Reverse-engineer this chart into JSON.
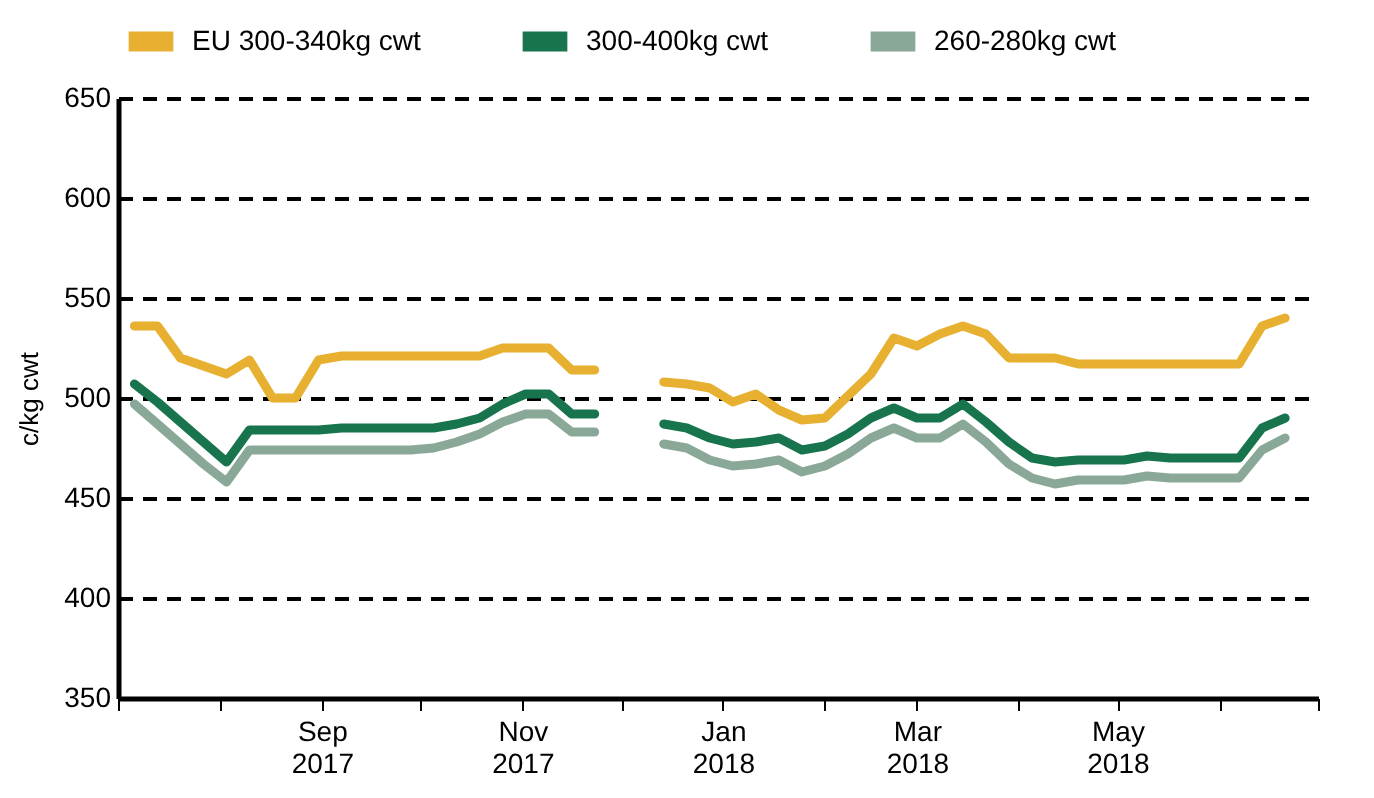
{
  "chart_data": {
    "type": "line",
    "ylabel": "c/kg cwt",
    "legend": "top",
    "grid": "y",
    "line_style": "solid",
    "marker": "none",
    "x": [
      "2017-07-06",
      "2017-07-13",
      "2017-07-20",
      "2017-07-27",
      "2017-08-03",
      "2017-08-10",
      "2017-08-17",
      "2017-08-24",
      "2017-08-31",
      "2017-09-07",
      "2017-09-14",
      "2017-09-21",
      "2017-09-28",
      "2017-10-05",
      "2017-10-12",
      "2017-10-19",
      "2017-10-26",
      "2017-11-02",
      "2017-11-09",
      "2017-11-16",
      "2017-11-23",
      "2017-11-30",
      "2017-12-07",
      "2017-12-14",
      "2017-12-21",
      "2017-12-28",
      "2018-01-04",
      "2018-01-11",
      "2018-01-18",
      "2018-01-25",
      "2018-02-01",
      "2018-02-08",
      "2018-02-15",
      "2018-02-22",
      "2018-03-01",
      "2018-03-08",
      "2018-03-15",
      "2018-03-22",
      "2018-03-29",
      "2018-04-05",
      "2018-04-12",
      "2018-04-19",
      "2018-04-26",
      "2018-05-03",
      "2018-05-10",
      "2018-05-17",
      "2018-05-24",
      "2018-05-31",
      "2018-06-07",
      "2018-06-14",
      "2018-06-21"
    ],
    "series": [
      {
        "name": "EU 300-340kg cwt",
        "color": "#e8b030",
        "values": [
          536,
          536,
          520,
          516,
          512,
          519,
          500,
          500,
          519,
          521,
          521,
          521,
          521,
          521,
          521,
          521,
          525,
          525,
          525,
          514,
          514,
          null,
          null,
          508,
          507,
          505,
          498,
          502,
          494,
          489,
          490,
          501,
          512,
          530,
          526,
          532,
          536,
          532,
          520,
          520,
          520,
          517,
          517,
          517,
          517,
          517,
          517,
          517,
          517,
          536,
          540
        ]
      },
      {
        "name": "300-400kg cwt",
        "color": "#17744c",
        "values": [
          507,
          498,
          488,
          478,
          468,
          484,
          484,
          484,
          484,
          485,
          485,
          485,
          485,
          485,
          487,
          490,
          497,
          502,
          502,
          492,
          492,
          null,
          null,
          487,
          485,
          480,
          477,
          478,
          480,
          474,
          476,
          482,
          490,
          495,
          490,
          490,
          497,
          488,
          478,
          470,
          468,
          469,
          469,
          469,
          471,
          470,
          470,
          470,
          470,
          485,
          490
        ]
      },
      {
        "name": "260-280kg cwt",
        "color": "#8aa898",
        "values": [
          497,
          487,
          477,
          467,
          458,
          474,
          474,
          474,
          474,
          474,
          474,
          474,
          474,
          475,
          478,
          482,
          488,
          492,
          492,
          483,
          483,
          null,
          null,
          477,
          475,
          469,
          466,
          467,
          469,
          463,
          466,
          472,
          480,
          485,
          480,
          480,
          487,
          478,
          467,
          460,
          457,
          459,
          459,
          459,
          461,
          460,
          460,
          460,
          460,
          474,
          480
        ]
      }
    ],
    "xlim": [
      "2017-07-01",
      "2018-07-01"
    ],
    "xticks": [
      {
        "value": "2017-07-01",
        "label": null
      },
      {
        "value": "2017-08-01",
        "label": null
      },
      {
        "value": "2017-09-01",
        "label": "Sep 2017"
      },
      {
        "value": "2017-10-01",
        "label": null
      },
      {
        "value": "2017-11-01",
        "label": "Nov 2017"
      },
      {
        "value": "2017-12-01",
        "label": null
      },
      {
        "value": "2018-01-01",
        "label": "Jan 2018"
      },
      {
        "value": "2018-02-01",
        "label": null
      },
      {
        "value": "2018-03-01",
        "label": "Mar 2018"
      },
      {
        "value": "2018-04-01",
        "label": null
      },
      {
        "value": "2018-05-01",
        "label": "May 2018"
      },
      {
        "value": "2018-06-01",
        "label": null
      },
      {
        "value": "2018-07-01",
        "label": null
      }
    ],
    "ylim": [
      350,
      650
    ],
    "yticks": [
      350,
      400,
      450,
      500,
      550,
      600,
      650
    ]
  }
}
